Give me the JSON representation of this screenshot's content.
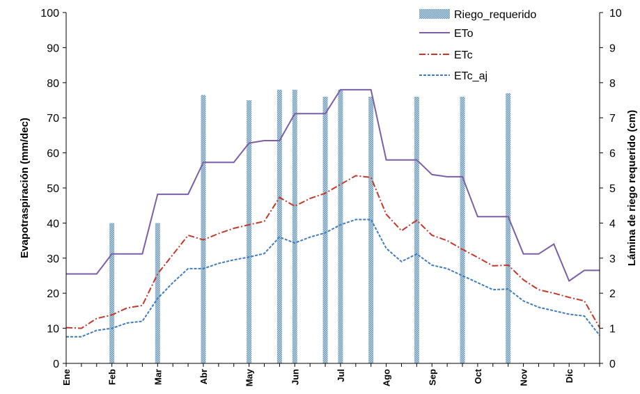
{
  "chart_data": {
    "type": "bar+line",
    "title": "",
    "ylabel_left": "Evapotraspiración  (mm/dec)",
    "ylabel_right": "Lámina de riego requerido (cm)",
    "ylim_left": [
      0,
      100
    ],
    "ylim_right": [
      0,
      10
    ],
    "yticks_left": [
      "0",
      "10",
      "20",
      "30",
      "40",
      "50",
      "60",
      "70",
      "80",
      "90",
      "100"
    ],
    "yticks_right": [
      "0",
      "1",
      "2",
      "3",
      "4",
      "5",
      "6",
      "7",
      "8",
      "9",
      "10"
    ],
    "month_labels": [
      "Ene",
      "Feb",
      "Mar",
      "Abr",
      "May",
      "Jun",
      "Jul",
      "Ago",
      "Sep",
      "Oct",
      "Nov",
      "Dic"
    ],
    "legend_position": "top-right",
    "bars": {
      "name": "Riego_requerido",
      "axis": "right",
      "color": "#9dbfd4",
      "decade_index": [
        3,
        6,
        9,
        12,
        14,
        15,
        17,
        18,
        20,
        23,
        26,
        29,
        33
      ],
      "values": [
        4.0,
        4.0,
        7.65,
        7.5,
        7.8,
        7.8,
        7.6,
        7.8,
        7.6,
        7.6,
        7.6,
        7.7,
        0
      ]
    },
    "series": [
      {
        "name": "ETo",
        "axis": "left",
        "color": "#7b5ea7",
        "style": "solid",
        "values": [
          25.5,
          25.5,
          25.5,
          31.2,
          31.2,
          31.2,
          48.2,
          48.2,
          48.2,
          57.3,
          57.3,
          57.3,
          62.8,
          63.5,
          63.5,
          71.2,
          71.2,
          71.2,
          78.0,
          78.0,
          78.0,
          58.0,
          58.0,
          58.0,
          53.8,
          53.2,
          53.2,
          41.8,
          41.8,
          41.8,
          31.2,
          31.2,
          34.0,
          23.5,
          26.5,
          26.5
        ]
      },
      {
        "name": "ETc",
        "axis": "left",
        "color": "#c0392b",
        "style": "dashdot",
        "values": [
          10.2,
          10.0,
          12.8,
          13.8,
          15.8,
          16.5,
          25.5,
          31.0,
          36.5,
          35.2,
          37.0,
          38.5,
          39.5,
          40.5,
          47.3,
          44.8,
          47.0,
          48.5,
          51.0,
          53.5,
          53.0,
          42.5,
          37.8,
          40.8,
          36.5,
          35.0,
          32.5,
          30.2,
          27.8,
          28.0,
          23.8,
          21.0,
          20.0,
          18.8,
          17.8,
          10.2
        ]
      },
      {
        "name": "ETc_aj",
        "axis": "left",
        "color": "#3d7cc0",
        "style": "dashed",
        "values": [
          7.6,
          7.6,
          9.4,
          10.0,
          11.5,
          12.0,
          18.5,
          23.0,
          27.0,
          27.0,
          28.5,
          29.5,
          30.3,
          31.3,
          36.0,
          34.3,
          36.0,
          37.2,
          39.5,
          41.0,
          41.0,
          32.8,
          29.0,
          31.2,
          28.0,
          27.0,
          25.0,
          23.0,
          21.0,
          21.2,
          17.8,
          16.0,
          15.0,
          14.0,
          13.5,
          8.0
        ]
      }
    ]
  }
}
